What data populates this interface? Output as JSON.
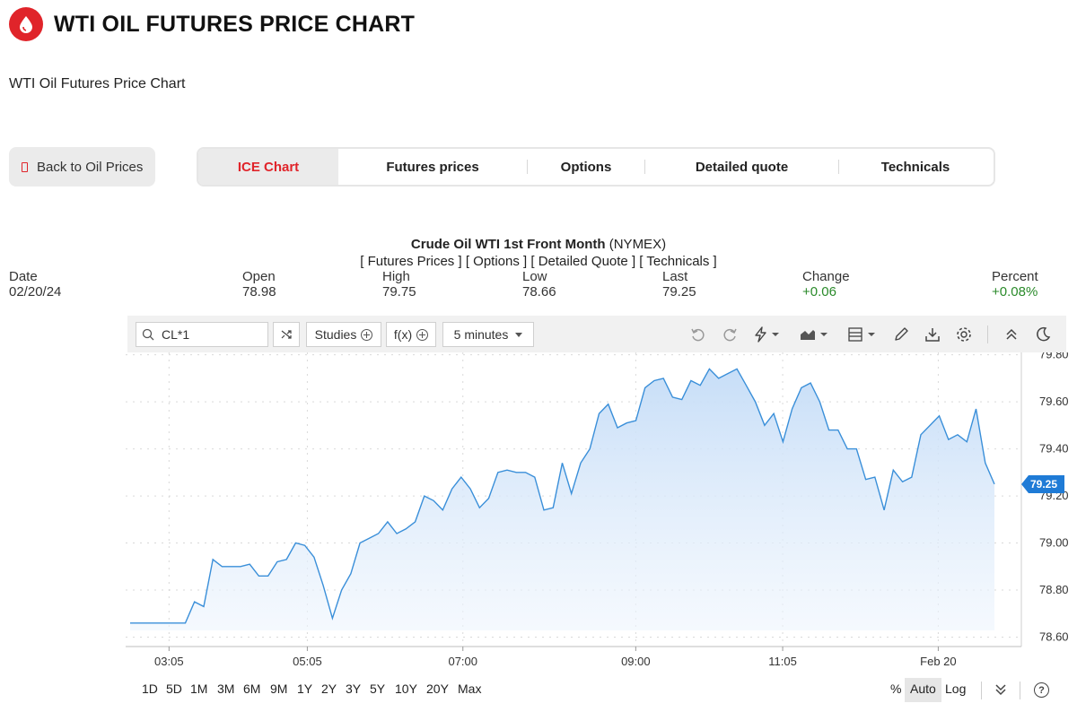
{
  "page": {
    "title": "WTI OIL FUTURES PRICE CHART",
    "subtitle": "WTI Oil Futures Price Chart",
    "back_button": "Back to Oil Prices"
  },
  "tabs": [
    {
      "label": "ICE Chart",
      "active": true
    },
    {
      "label": "Futures prices",
      "active": false
    },
    {
      "label": "Options",
      "active": false
    },
    {
      "label": "Detailed quote",
      "active": false
    },
    {
      "label": "Technicals",
      "active": false
    }
  ],
  "instrument": {
    "name": "Crude Oil WTI 1st Front Month",
    "exchange": "(NYMEX)",
    "links": [
      "[ Futures Prices ]",
      "[ Options ]",
      "[ Detailed Quote ]",
      "[ Technicals ]"
    ]
  },
  "quote": {
    "date": {
      "label": "Date",
      "value": "02/20/24"
    },
    "open": {
      "label": "Open",
      "value": "78.98"
    },
    "high": {
      "label": "High",
      "value": "79.75"
    },
    "low": {
      "label": "Low",
      "value": "78.66"
    },
    "last": {
      "label": "Last",
      "value": "79.25"
    },
    "change": {
      "label": "Change",
      "value": "+0.06"
    },
    "percent": {
      "label": "Percent",
      "value": "+0.08%"
    }
  },
  "toolbar": {
    "symbol": "CL*1",
    "studies": "Studies",
    "fx": "f(x)",
    "interval": "5 minutes",
    "icons": [
      "undo-icon",
      "redo-icon",
      "lightning-icon",
      "chart-type-icon",
      "layout-icon",
      "pencil-icon",
      "download-icon",
      "settings-icon",
      "collapse-icon",
      "dark-mode-icon"
    ]
  },
  "ranges": [
    "1D",
    "5D",
    "1M",
    "3M",
    "6M",
    "9M",
    "1Y",
    "2Y",
    "3Y",
    "5Y",
    "10Y",
    "20Y",
    "Max"
  ],
  "scale_options": {
    "percent": "%",
    "auto": "Auto",
    "log": "Log",
    "help": "?"
  },
  "colors": {
    "accent": "#e0242a",
    "line": "#3a8fd9",
    "fill": "#cfe3fa",
    "up": "#2a8a2a"
  },
  "chart_data": {
    "type": "area",
    "x_tick_labels": [
      "03:05",
      "05:05",
      "07:00",
      "09:00",
      "11:05",
      "Feb 20"
    ],
    "y_tick_labels": [
      "79.80",
      "79.60",
      "79.40",
      "79.20",
      "79.00",
      "78.80",
      "78.60"
    ],
    "ylim": [
      78.56,
      79.81
    ],
    "last_value_label": "79.25",
    "grid": true,
    "values": [
      78.66,
      78.66,
      78.66,
      78.66,
      78.66,
      78.66,
      78.66,
      78.75,
      78.73,
      78.93,
      78.9,
      78.9,
      78.9,
      78.91,
      78.86,
      78.86,
      78.92,
      78.93,
      79.0,
      78.99,
      78.94,
      78.82,
      78.68,
      78.8,
      78.87,
      79.0,
      79.02,
      79.04,
      79.09,
      79.04,
      79.06,
      79.09,
      79.2,
      79.18,
      79.14,
      79.23,
      79.28,
      79.23,
      79.15,
      79.19,
      79.3,
      79.31,
      79.3,
      79.3,
      79.28,
      79.14,
      79.15,
      79.34,
      79.21,
      79.34,
      79.4,
      79.55,
      79.59,
      79.49,
      79.51,
      79.52,
      79.66,
      79.69,
      79.7,
      79.62,
      79.61,
      79.69,
      79.67,
      79.74,
      79.7,
      79.72,
      79.74,
      79.67,
      79.6,
      79.5,
      79.55,
      79.43,
      79.57,
      79.66,
      79.68,
      79.6,
      79.48,
      79.48,
      79.4,
      79.4,
      79.27,
      79.28,
      79.14,
      79.31,
      79.26,
      79.28,
      79.46,
      79.5,
      79.54,
      79.44,
      79.46,
      79.43,
      79.57,
      79.34,
      79.25
    ]
  }
}
